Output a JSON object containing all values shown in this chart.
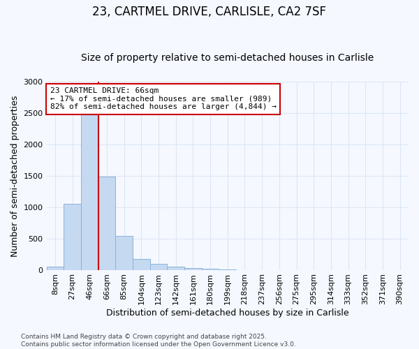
{
  "title_line1": "23, CARTMEL DRIVE, CARLISLE, CA2 7SF",
  "title_line2": "Size of property relative to semi-detached houses in Carlisle",
  "xlabel": "Distribution of semi-detached houses by size in Carlisle",
  "ylabel": "Number of semi-detached properties",
  "footnote": "Contains HM Land Registry data © Crown copyright and database right 2025.\nContains public sector information licensed under the Open Government Licence v3.0.",
  "bin_labels": [
    "8sqm",
    "27sqm",
    "46sqm",
    "66sqm",
    "85sqm",
    "104sqm",
    "123sqm",
    "142sqm",
    "161sqm",
    "180sqm",
    "199sqm",
    "218sqm",
    "237sqm",
    "256sqm",
    "275sqm",
    "295sqm",
    "314sqm",
    "333sqm",
    "352sqm",
    "371sqm",
    "390sqm"
  ],
  "bar_values": [
    50,
    1050,
    2500,
    1490,
    540,
    175,
    95,
    50,
    30,
    15,
    5,
    0,
    0,
    0,
    0,
    0,
    0,
    0,
    0,
    0,
    0
  ],
  "bar_color": "#c5d9f1",
  "bar_edgecolor": "#8ab4d8",
  "property_line_index": 3,
  "annotation_text": "23 CARTMEL DRIVE: 66sqm\n← 17% of semi-detached houses are smaller (989)\n82% of semi-detached houses are larger (4,844) →",
  "annotation_box_facecolor": "#ffffff",
  "annotation_box_edgecolor": "#cc0000",
  "property_line_color": "#cc0000",
  "ylim": [
    0,
    3000
  ],
  "yticks": [
    0,
    500,
    1000,
    1500,
    2000,
    2500,
    3000
  ],
  "background_color": "#f5f8ff",
  "grid_color": "#dce6f5",
  "title_fontsize": 12,
  "subtitle_fontsize": 10,
  "axis_label_fontsize": 9,
  "tick_fontsize": 8,
  "annotation_fontsize": 8,
  "footnote_fontsize": 6.5
}
